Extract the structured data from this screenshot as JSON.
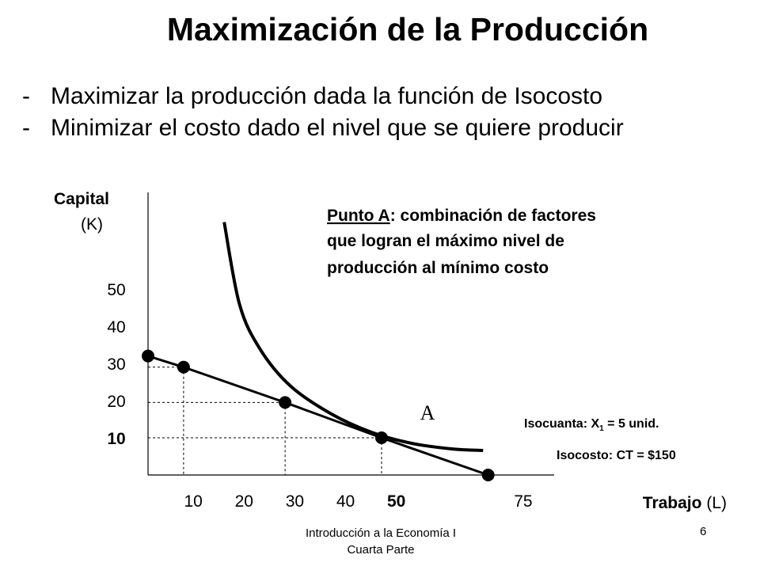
{
  "title": "Maximización de la Producción",
  "bullets": [
    "Maximizar la producción dada la función de Isocosto",
    "Minimizar el costo dado el nivel que se quiere producir"
  ],
  "footer": {
    "course_line1": "Introducción a la Economía I",
    "course_line2": "Cuarta Parte",
    "page_number": "6"
  },
  "chart_data": {
    "type": "line",
    "ylabel_bold": "Capital",
    "ylabel_rest": "(K)",
    "xlabel_bold": "Trabajo",
    "xlabel_rest": "(L)",
    "y_ticks": [
      {
        "label": "50",
        "value": 50,
        "bold": false
      },
      {
        "label": "40",
        "value": 40,
        "bold": false
      },
      {
        "label": "30",
        "value": 30,
        "bold": false
      },
      {
        "label": "20",
        "value": 20,
        "bold": false
      },
      {
        "label": "10",
        "value": 10,
        "bold": true
      }
    ],
    "x_ticks": [
      {
        "label": "10",
        "value": 10,
        "bold": false
      },
      {
        "label": "20",
        "value": 20,
        "bold": false
      },
      {
        "label": "30",
        "value": 30,
        "bold": false
      },
      {
        "label": "40",
        "value": 40,
        "bold": false
      },
      {
        "label": "50",
        "value": 50,
        "bold": true
      },
      {
        "label": "75",
        "value": 75,
        "bold": false
      }
    ],
    "xlim": [
      0,
      80
    ],
    "ylim": [
      0,
      76
    ],
    "isocost": {
      "label": "Isocosto: CT = $150",
      "points": [
        [
          0,
          32
        ],
        [
          7,
          29
        ],
        [
          27,
          19.5
        ],
        [
          46,
          10
        ],
        [
          67,
          0
        ]
      ]
    },
    "isoquant": {
      "label_prefix": "Isocuanta: X",
      "label_sub": "1",
      "label_suffix": " = 5 unid.",
      "points": [
        [
          15,
          68
        ],
        [
          18,
          46
        ],
        [
          22,
          34
        ],
        [
          28,
          24
        ],
        [
          36,
          16.5
        ],
        [
          44,
          11.5
        ],
        [
          52,
          8.5
        ],
        [
          60,
          7
        ],
        [
          66,
          6.6
        ]
      ]
    },
    "guides": [
      {
        "x": 7,
        "y": 29
      },
      {
        "x": 27,
        "y": 19.5
      },
      {
        "x": 46,
        "y": 10
      }
    ],
    "point_label": "A",
    "annotation_underlined": "Punto A",
    "annotation_lines": [
      ": combinación de factores",
      "que logran el máximo nivel de",
      "producción al mínimo costo"
    ]
  }
}
